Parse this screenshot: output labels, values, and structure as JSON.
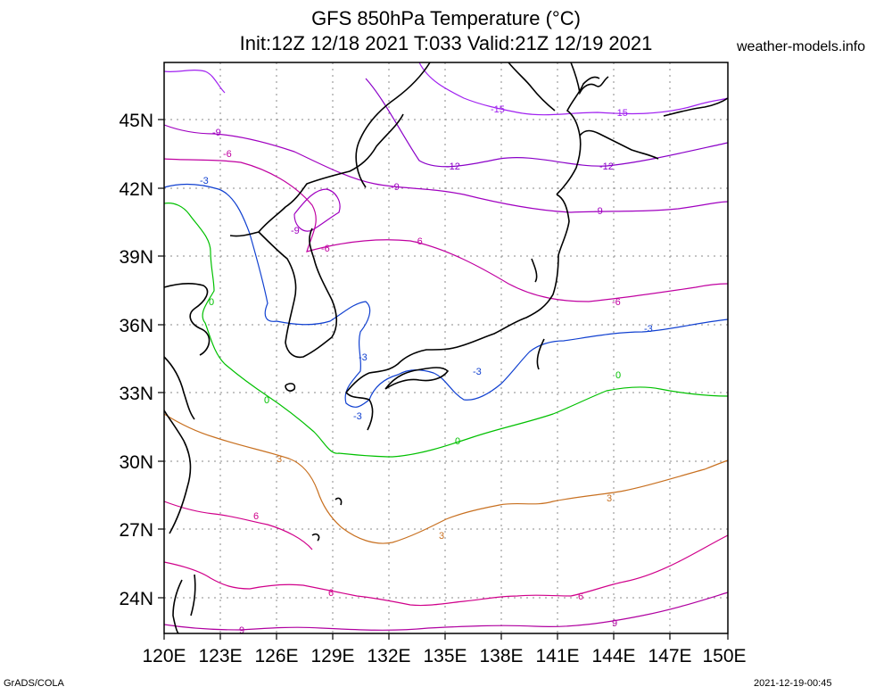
{
  "header": {
    "title_line1": "GFS 850hPa Temperature (°C)",
    "title_line2": "Init:12Z 12/18 2021 T:033 Valid:21Z 12/19 2021",
    "site": "weather-models.info"
  },
  "footer": {
    "left": "GrADS/COLA",
    "right": "2021-12-19-00:45"
  },
  "map": {
    "lon_labels": [
      "120E",
      "123E",
      "126E",
      "129E",
      "132E",
      "135E",
      "138E",
      "141E",
      "144E",
      "147E",
      "150E"
    ],
    "lat_labels": [
      "45N",
      "42N",
      "39N",
      "36N",
      "33N",
      "30N",
      "27N",
      "24N"
    ],
    "grid": true,
    "contour_colors": {
      "coast": "#000000",
      "minus15": "#a020f0",
      "minus12": "#8a00c8",
      "minus9": "#a000c0",
      "minus6": "#c000a0",
      "minus3": "#1040d0",
      "zero": "#00c000",
      "plus3": "#c87020",
      "plus6": "#d0008a",
      "plus9": "#b000a0"
    },
    "contour_labels": [
      {
        "id": "m15a",
        "text": "-15"
      },
      {
        "id": "m15b",
        "text": "-15"
      },
      {
        "id": "m12a",
        "text": "-12"
      },
      {
        "id": "m12b",
        "text": "-12"
      },
      {
        "id": "m9a",
        "text": "-9"
      },
      {
        "id": "m9b",
        "text": "-9"
      },
      {
        "id": "m9c",
        "text": "-9"
      },
      {
        "id": "m9d",
        "text": "-9"
      },
      {
        "id": "m6a",
        "text": "-6"
      },
      {
        "id": "m6b",
        "text": "-6"
      },
      {
        "id": "m6c",
        "text": "-6"
      },
      {
        "id": "m6d",
        "text": "-6"
      },
      {
        "id": "m3a",
        "text": "-3"
      },
      {
        "id": "m3b",
        "text": "-3"
      },
      {
        "id": "m3c",
        "text": "-3"
      },
      {
        "id": "m3d",
        "text": "-3"
      },
      {
        "id": "m3e",
        "text": "-3"
      },
      {
        "id": "z0a",
        "text": "0"
      },
      {
        "id": "z0b",
        "text": "0"
      },
      {
        "id": "z0c",
        "text": "0"
      },
      {
        "id": "z0d",
        "text": "0"
      },
      {
        "id": "p3a",
        "text": "3"
      },
      {
        "id": "p3b",
        "text": "3"
      },
      {
        "id": "p3c",
        "text": "3"
      },
      {
        "id": "p6a",
        "text": "6"
      },
      {
        "id": "p6b",
        "text": "6"
      },
      {
        "id": "p6c",
        "text": "6"
      },
      {
        "id": "p9a",
        "text": "9"
      },
      {
        "id": "p9b",
        "text": "9"
      }
    ]
  }
}
